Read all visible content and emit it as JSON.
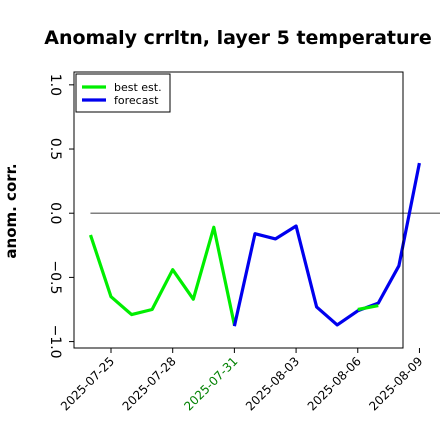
{
  "chart_data": {
    "type": "line",
    "title": "Anomaly crrltn, layer 5 temperature",
    "ylabel": "anom. corr.",
    "xlabel": "",
    "ylim": [
      -1.05,
      1.1
    ],
    "x_day_range": [
      -1.8,
      14.2
    ],
    "yticks": [
      -1.0,
      -0.5,
      0.0,
      0.5,
      1.0
    ],
    "ytick_labels": [
      "−1.0",
      "−0.5",
      "0.0",
      "0.5",
      "1.0"
    ],
    "xticks": [
      {
        "label": "2025-07-25",
        "day": 0,
        "color": "#000000"
      },
      {
        "label": "2025-07-28",
        "day": 3,
        "color": "#000000"
      },
      {
        "label": "2025-07-31",
        "day": 6,
        "color": "#008000"
      },
      {
        "label": "2025-08-03",
        "day": 9,
        "color": "#000000"
      },
      {
        "label": "2025-08-06",
        "day": 12,
        "color": "#000000"
      },
      {
        "label": "2025-08-09",
        "day": 15,
        "color": "#000000"
      }
    ],
    "hline": 0.0,
    "grid": false,
    "legend_position": "top-left",
    "series": [
      {
        "name": "best est.",
        "color": "#00ee00",
        "points": [
          {
            "x": "2025-07-24",
            "y": -0.17
          },
          {
            "x": "2025-07-25",
            "y": -0.65
          },
          {
            "x": "2025-07-26",
            "y": -0.79
          },
          {
            "x": "2025-07-27",
            "y": -0.75
          },
          {
            "x": "2025-07-28",
            "y": -0.44
          },
          {
            "x": "2025-07-29",
            "y": -0.67
          },
          {
            "x": "2025-07-30",
            "y": -0.11
          },
          {
            "x": "2025-07-31",
            "y": -0.87
          }
        ]
      },
      {
        "name": "forecast",
        "color": "#0000ee",
        "points": [
          {
            "x": "2025-07-31",
            "y": -0.88
          },
          {
            "x": "2025-08-01",
            "y": -0.16
          },
          {
            "x": "2025-08-02",
            "y": -0.2
          },
          {
            "x": "2025-08-03",
            "y": -0.1
          },
          {
            "x": "2025-08-04",
            "y": -0.73
          },
          {
            "x": "2025-08-05",
            "y": -0.87
          },
          {
            "x": "2025-08-06",
            "y": -0.76
          },
          {
            "x": "2025-08-07",
            "y": -0.7
          },
          {
            "x": "2025-08-08",
            "y": -0.41
          },
          {
            "x": "2025-08-09",
            "y": 0.39
          }
        ]
      },
      {
        "name": "",
        "color": "#00ee00",
        "points": [
          {
            "x": "2025-08-06",
            "y": -0.75
          },
          {
            "x": "2025-08-07",
            "y": -0.72
          }
        ]
      }
    ]
  }
}
